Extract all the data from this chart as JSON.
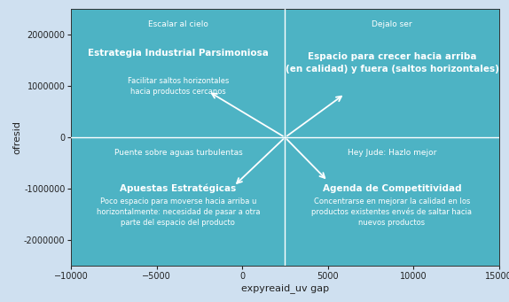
{
  "xlim": [
    -10000,
    15000
  ],
  "ylim": [
    -2500000,
    2500000
  ],
  "xlabel": "expyreaid_uv gap",
  "ylabel": "ofresid",
  "plot_bg": "#4db3c4",
  "outer_bg": "#cfe0f0",
  "divider_x": 2500,
  "divider_y": 0,
  "xticks": [
    -10000,
    -5000,
    0,
    5000,
    10000,
    15000
  ],
  "yticks": [
    -2000000,
    -1000000,
    0,
    1000000,
    2000000
  ],
  "ytick_labels": [
    "-2000000",
    "-1000000",
    "0",
    "1000000",
    "2000000"
  ],
  "quadrant_texts": {
    "TL_label": "Escalar al cielo",
    "TL_bold": "Estrategia Industrial Parsimoniosa",
    "TL_desc": "Facilitar saltos horizontales\nhacia productos cercanos",
    "TR_label": "Dejalo ser",
    "TR_bold": "Espacio para crecer hacia arriba\n(en calidad) y fuera (saltos horizontales)",
    "TR_desc": "",
    "BL_label": "Puente sobre aguas turbulentas",
    "BL_bold": "Apuestas Estratégicas",
    "BL_desc": "Poco espacio para moverse hacia arriba u\nhorizontalmente: necesidad de pasar a otra\nparte del espacio del producto",
    "BR_label": "Hey Jude: Hazlo mejor",
    "BR_bold": "Agenda de Competitividad",
    "BR_desc": "Concentrarse en mejorar la calidad en los\nproductos existentes envés de saltar hacia\nnuevos productos"
  },
  "arrow_color": "white",
  "text_color": "white",
  "divider_color": "white",
  "axis_line_color": "#333333",
  "tick_color": "#222222",
  "tick_fontsize": 7,
  "label_fontsize": 8,
  "text_label_fontsize": 6.5,
  "text_bold_fontsize": 7.5,
  "text_desc_fontsize": 6.0
}
